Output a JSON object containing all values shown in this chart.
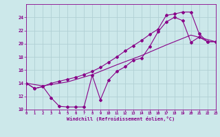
{
  "bg_color": "#cce8ea",
  "line_color": "#880088",
  "grid_color": "#b0d0d4",
  "xlabel": "Windchill (Refroidissement éolien,°C)",
  "xlim": [
    0,
    23
  ],
  "ylim": [
    10,
    26
  ],
  "yticks": [
    10,
    12,
    14,
    16,
    18,
    20,
    22,
    24
  ],
  "xticks": [
    0,
    1,
    2,
    3,
    4,
    5,
    6,
    7,
    8,
    9,
    10,
    11,
    12,
    13,
    14,
    15,
    16,
    17,
    18,
    19,
    20,
    21,
    22,
    23
  ],
  "line1_x": [
    0,
    1,
    2,
    3,
    4,
    5,
    6,
    7,
    8,
    9,
    10,
    11,
    12,
    13,
    14,
    15,
    16,
    17,
    18,
    19,
    20,
    21,
    22,
    23
  ],
  "line1_y": [
    14.0,
    13.2,
    13.5,
    14.0,
    14.3,
    14.6,
    14.9,
    15.3,
    15.8,
    16.4,
    17.2,
    18.0,
    18.9,
    19.7,
    20.5,
    21.4,
    22.2,
    24.3,
    24.5,
    24.8,
    24.8,
    21.5,
    20.3,
    20.3
  ],
  "line2_x": [
    0,
    2,
    5,
    8,
    11,
    14,
    17,
    20,
    23
  ],
  "line2_y": [
    14.0,
    13.6,
    14.2,
    15.3,
    16.8,
    18.2,
    19.8,
    21.3,
    20.3
  ],
  "line3_x": [
    0,
    1,
    2,
    3,
    4,
    5,
    6,
    7,
    8,
    9,
    10,
    11,
    12,
    13,
    14,
    15,
    16,
    17,
    18,
    19,
    20,
    21,
    22,
    23
  ],
  "line3_y": [
    14.0,
    13.2,
    13.5,
    11.8,
    10.5,
    10.4,
    10.4,
    10.4,
    15.2,
    11.5,
    14.5,
    15.8,
    16.5,
    17.5,
    17.8,
    19.6,
    21.8,
    23.3,
    24.0,
    23.5,
    20.2,
    21.0,
    20.3,
    20.3
  ]
}
